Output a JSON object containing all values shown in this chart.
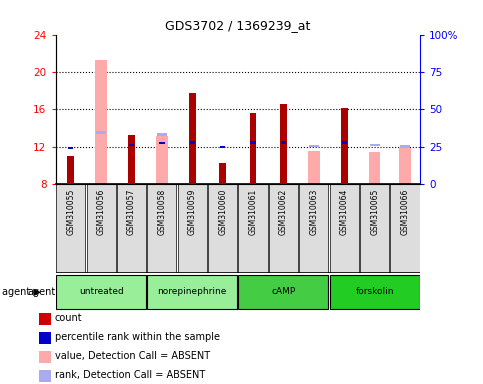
{
  "title": "GDS3702 / 1369239_at",
  "samples": [
    "GSM310055",
    "GSM310056",
    "GSM310057",
    "GSM310058",
    "GSM310059",
    "GSM310060",
    "GSM310061",
    "GSM310062",
    "GSM310063",
    "GSM310064",
    "GSM310065",
    "GSM310066"
  ],
  "group_configs": [
    {
      "name": "untreated",
      "start": 0,
      "end": 2,
      "color": "#99ee99"
    },
    {
      "name": "norepinephrine",
      "start": 3,
      "end": 5,
      "color": "#99ee99"
    },
    {
      "name": "cAMP",
      "start": 6,
      "end": 8,
      "color": "#44cc44"
    },
    {
      "name": "forskolin",
      "start": 9,
      "end": 11,
      "color": "#22cc22"
    }
  ],
  "count_values": [
    11.0,
    null,
    13.3,
    null,
    17.8,
    10.3,
    15.6,
    16.6,
    null,
    16.2,
    null,
    null
  ],
  "rank_values": [
    11.9,
    null,
    12.2,
    12.4,
    12.5,
    12.0,
    12.5,
    12.5,
    null,
    12.5,
    null,
    null
  ],
  "absent_value_bars": [
    null,
    21.3,
    null,
    13.2,
    null,
    null,
    null,
    null,
    11.6,
    null,
    11.5,
    11.9
  ],
  "absent_rank_bars": [
    null,
    13.5,
    null,
    13.3,
    null,
    null,
    null,
    null,
    12.1,
    null,
    12.2,
    12.0
  ],
  "ylim_left": [
    8,
    24
  ],
  "ylim_right": [
    0,
    100
  ],
  "yticks_left": [
    8,
    12,
    16,
    20,
    24
  ],
  "yticks_right": [
    0,
    25,
    50,
    75,
    100
  ],
  "ytick_labels_right": [
    "0",
    "25",
    "50",
    "75",
    "100%"
  ],
  "count_color": "#aa0000",
  "rank_color": "#0000cc",
  "absent_value_color": "#ffaaaa",
  "absent_rank_color": "#aaaaee",
  "legend_items": [
    {
      "color": "#cc0000",
      "label": "count"
    },
    {
      "color": "#0000cc",
      "label": "percentile rank within the sample"
    },
    {
      "color": "#ffaaaa",
      "label": "value, Detection Call = ABSENT"
    },
    {
      "color": "#aaaaee",
      "label": "rank, Detection Call = ABSENT"
    }
  ]
}
